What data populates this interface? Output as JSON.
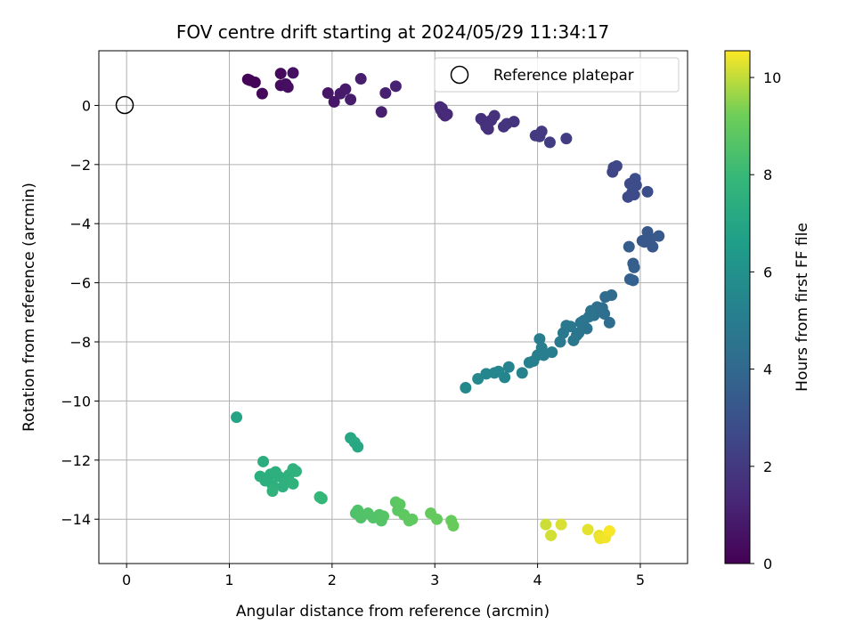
{
  "chart_data": {
    "type": "scatter",
    "title": "FOV centre drift starting at 2024/05/29 11:34:17",
    "xlabel": "Angular distance from reference (arcmin)",
    "ylabel": "Rotation from reference (arcmin)",
    "xlim": [
      -0.27,
      5.46
    ],
    "ylim": [
      -15.5,
      1.85
    ],
    "xticks": [
      0,
      1,
      2,
      3,
      4,
      5
    ],
    "yticks": [
      0,
      -2,
      -4,
      -6,
      -8,
      -10,
      -12,
      -14
    ],
    "xtick_labels": [
      "0",
      "1",
      "2",
      "3",
      "4",
      "5"
    ],
    "ytick_labels": [
      "0",
      "−2",
      "−4",
      "−6",
      "−8",
      "−10",
      "−12",
      "−14"
    ],
    "grid": true,
    "legend": {
      "position": "top-right",
      "entries": [
        "Reference platepar"
      ]
    },
    "reference_point": {
      "x": 0,
      "y": 0,
      "label": "Reference platepar"
    },
    "colorbar": {
      "label": "Hours from first FF file",
      "colormap": "viridis",
      "range": [
        0,
        10.55
      ],
      "ticks": [
        0,
        2,
        4,
        6,
        8,
        10
      ],
      "tick_labels": [
        "0",
        "2",
        "4",
        "6",
        "8",
        "10"
      ]
    },
    "series": [
      {
        "points": [
          [
            1.18,
            0.88,
            0.05
          ],
          [
            1.2,
            0.85,
            0.1
          ],
          [
            1.25,
            0.78,
            0.15
          ],
          [
            1.32,
            0.4,
            0.2
          ],
          [
            1.5,
            1.08,
            0.3
          ],
          [
            1.5,
            0.68,
            0.35
          ],
          [
            1.55,
            0.72,
            0.4
          ],
          [
            1.57,
            0.62,
            0.45
          ],
          [
            1.62,
            1.1,
            0.5
          ],
          [
            1.96,
            0.42,
            0.7
          ],
          [
            2.02,
            0.12,
            0.75
          ],
          [
            2.08,
            0.4,
            0.8
          ],
          [
            2.13,
            0.55,
            0.85
          ],
          [
            2.18,
            0.2,
            0.9
          ],
          [
            2.28,
            0.9,
            0.95
          ],
          [
            2.48,
            -0.22,
            1.0
          ],
          [
            2.52,
            0.42,
            1.05
          ],
          [
            2.62,
            0.65,
            1.1
          ],
          [
            3.05,
            -0.05,
            1.3
          ],
          [
            3.06,
            -0.15,
            1.32
          ],
          [
            3.08,
            -0.28,
            1.34
          ],
          [
            3.1,
            -0.35,
            1.36
          ],
          [
            3.12,
            -0.3,
            1.38
          ],
          [
            3.07,
            -0.1,
            1.4
          ],
          [
            3.45,
            -0.45,
            1.6
          ],
          [
            3.48,
            -0.55,
            1.62
          ],
          [
            3.5,
            -0.72,
            1.64
          ],
          [
            3.52,
            -0.8,
            1.66
          ],
          [
            3.55,
            -0.5,
            1.68
          ],
          [
            3.58,
            -0.35,
            1.7
          ],
          [
            3.67,
            -0.72,
            1.75
          ],
          [
            3.7,
            -0.62,
            1.78
          ],
          [
            3.77,
            -0.55,
            1.8
          ],
          [
            3.98,
            -1.02,
            2.0
          ],
          [
            4.02,
            -1.05,
            2.02
          ],
          [
            4.04,
            -0.88,
            2.04
          ],
          [
            4.12,
            -1.25,
            2.1
          ],
          [
            4.28,
            -1.12,
            2.15
          ],
          [
            4.73,
            -2.25,
            2.5
          ],
          [
            4.74,
            -2.1,
            2.52
          ],
          [
            4.77,
            -2.05,
            2.55
          ],
          [
            4.88,
            -3.1,
            2.7
          ],
          [
            4.9,
            -2.65,
            2.72
          ],
          [
            4.92,
            -2.95,
            2.74
          ],
          [
            4.94,
            -3.02,
            2.76
          ],
          [
            4.95,
            -2.48,
            2.78
          ],
          [
            4.96,
            -2.7,
            2.8
          ],
          [
            5.07,
            -2.92,
            2.85
          ],
          [
            5.02,
            -4.58,
            3.2
          ],
          [
            5.04,
            -4.62,
            3.22
          ],
          [
            5.07,
            -4.28,
            3.24
          ],
          [
            5.1,
            -4.5,
            3.26
          ],
          [
            5.12,
            -4.78,
            3.28
          ],
          [
            5.18,
            -4.42,
            3.3
          ],
          [
            4.89,
            -4.78,
            3.5
          ],
          [
            4.93,
            -5.35,
            3.55
          ],
          [
            4.94,
            -5.48,
            3.58
          ],
          [
            4.9,
            -5.88,
            3.62
          ],
          [
            4.93,
            -5.92,
            3.65
          ],
          [
            4.72,
            -6.42,
            4.1
          ],
          [
            4.66,
            -6.48,
            4.15
          ],
          [
            4.7,
            -7.35,
            4.2
          ],
          [
            4.65,
            -7.05,
            4.25
          ],
          [
            4.63,
            -6.85,
            4.3
          ],
          [
            4.58,
            -6.82,
            4.35
          ],
          [
            4.55,
            -7.1,
            4.4
          ],
          [
            4.5,
            -7.15,
            4.45
          ],
          [
            4.52,
            -6.95,
            4.5
          ],
          [
            4.48,
            -7.55,
            4.55
          ],
          [
            4.45,
            -7.28,
            4.6
          ],
          [
            4.42,
            -7.35,
            4.62
          ],
          [
            4.4,
            -7.7,
            4.65
          ],
          [
            4.38,
            -7.78,
            4.68
          ],
          [
            4.35,
            -7.95,
            4.7
          ],
          [
            4.32,
            -7.48,
            4.72
          ],
          [
            4.28,
            -7.45,
            4.75
          ],
          [
            4.25,
            -7.7,
            4.78
          ],
          [
            4.22,
            -8.0,
            4.82
          ],
          [
            4.14,
            -8.35,
            5.0
          ],
          [
            4.06,
            -8.45,
            5.02
          ],
          [
            4.04,
            -8.2,
            5.05
          ],
          [
            4.02,
            -7.9,
            5.08
          ],
          [
            4.0,
            -8.45,
            5.1
          ],
          [
            3.96,
            -8.65,
            5.12
          ],
          [
            3.92,
            -8.7,
            5.15
          ],
          [
            3.85,
            -9.05,
            5.3
          ],
          [
            3.72,
            -8.85,
            5.35
          ],
          [
            3.68,
            -9.2,
            5.4
          ],
          [
            3.62,
            -9.0,
            5.45
          ],
          [
            3.58,
            -9.05,
            5.48
          ],
          [
            3.5,
            -9.08,
            5.5
          ],
          [
            3.42,
            -9.25,
            5.55
          ],
          [
            3.3,
            -9.55,
            5.6
          ],
          [
            1.07,
            -10.55,
            6.9
          ],
          [
            2.18,
            -11.25,
            7.1
          ],
          [
            2.22,
            -11.4,
            7.12
          ],
          [
            2.25,
            -11.55,
            7.14
          ],
          [
            1.33,
            -12.05,
            7.4
          ],
          [
            1.3,
            -12.55,
            7.42
          ],
          [
            1.35,
            -12.7,
            7.44
          ],
          [
            1.4,
            -12.48,
            7.46
          ],
          [
            1.42,
            -12.85,
            7.48
          ],
          [
            1.45,
            -12.4,
            7.5
          ],
          [
            1.48,
            -12.55,
            7.52
          ],
          [
            1.52,
            -12.9,
            7.54
          ],
          [
            1.55,
            -12.75,
            7.56
          ],
          [
            1.58,
            -12.5,
            7.58
          ],
          [
            1.62,
            -12.3,
            7.6
          ],
          [
            1.65,
            -12.38,
            7.62
          ],
          [
            1.62,
            -12.8,
            7.64
          ],
          [
            1.42,
            -13.05,
            7.66
          ],
          [
            1.88,
            -13.25,
            7.9
          ],
          [
            1.9,
            -13.3,
            7.92
          ],
          [
            2.23,
            -13.8,
            8.5
          ],
          [
            2.25,
            -13.7,
            8.52
          ],
          [
            2.28,
            -13.95,
            8.55
          ],
          [
            2.35,
            -13.8,
            8.58
          ],
          [
            2.4,
            -13.95,
            8.6
          ],
          [
            2.46,
            -13.85,
            8.62
          ],
          [
            2.48,
            -14.05,
            8.65
          ],
          [
            2.5,
            -13.9,
            8.68
          ],
          [
            2.62,
            -13.42,
            8.8
          ],
          [
            2.64,
            -13.7,
            8.82
          ],
          [
            2.66,
            -13.5,
            8.84
          ],
          [
            2.7,
            -13.85,
            8.86
          ],
          [
            2.75,
            -14.05,
            8.88
          ],
          [
            2.78,
            -14.0,
            8.9
          ],
          [
            2.96,
            -13.8,
            9.0
          ],
          [
            3.02,
            -14.0,
            9.02
          ],
          [
            3.16,
            -14.05,
            9.05
          ],
          [
            3.18,
            -14.22,
            9.08
          ],
          [
            4.08,
            -14.18,
            10.1
          ],
          [
            4.13,
            -14.55,
            10.15
          ],
          [
            4.23,
            -14.18,
            10.2
          ],
          [
            4.49,
            -14.35,
            10.3
          ],
          [
            4.6,
            -14.55,
            10.35
          ],
          [
            4.61,
            -14.65,
            10.4
          ],
          [
            4.66,
            -14.62,
            10.45
          ],
          [
            4.7,
            -14.4,
            10.5
          ]
        ]
      }
    ]
  }
}
